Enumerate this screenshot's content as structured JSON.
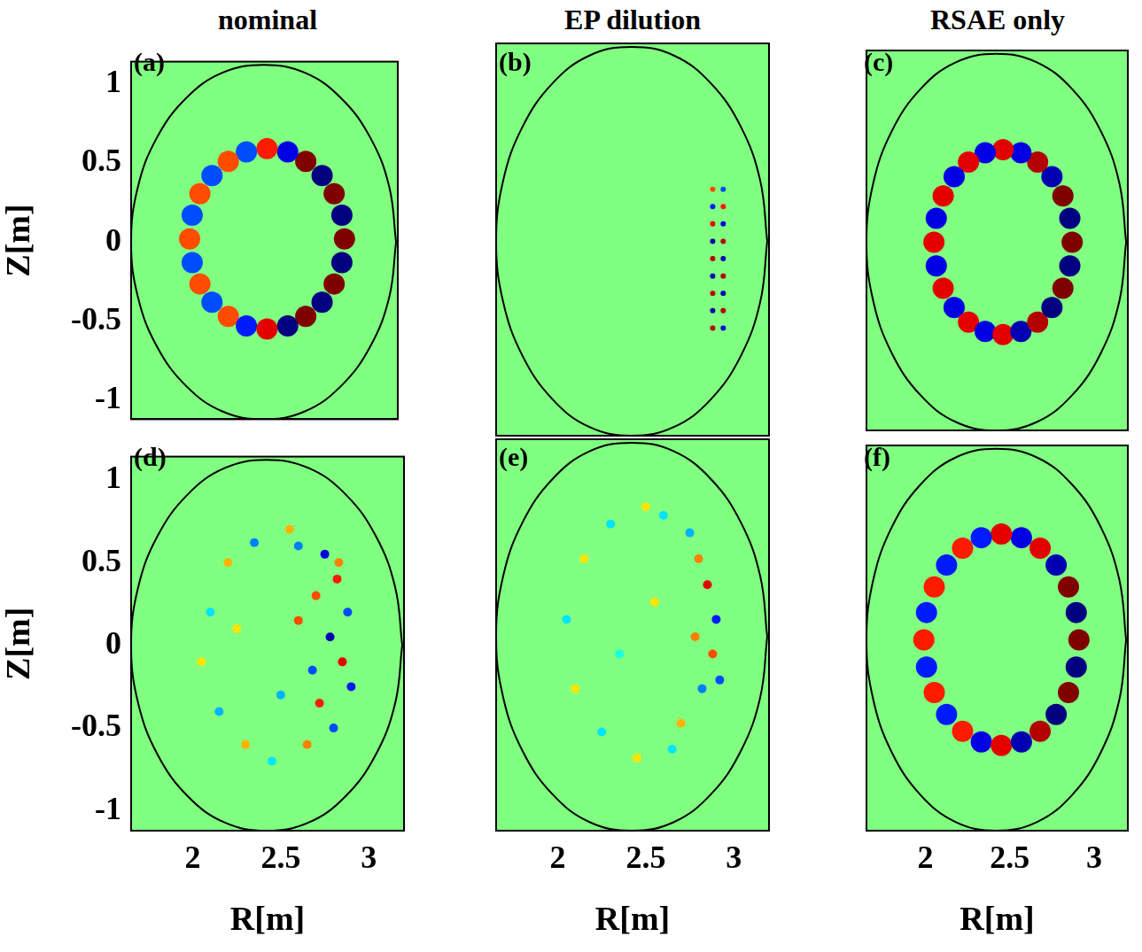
{
  "chart_data": [
    {
      "type": "scatter",
      "title": "nominal",
      "panel_label": "(a)",
      "y_label": "Z[m]",
      "tick_labels": "y",
      "xlim": [
        1.65,
        3.2
      ],
      "ylim": [
        -1.12,
        1.14
      ],
      "yticks": [
        -1,
        -0.5,
        0,
        0.5,
        1
      ],
      "color_range": [
        -1,
        1
      ],
      "boundary": {
        "R": [
          3.19,
          3.15,
          3.04,
          2.87,
          2.66,
          2.42,
          2.18,
          1.97,
          1.8,
          1.69,
          1.65,
          1.69,
          1.8,
          1.97,
          2.18,
          2.42,
          2.66,
          2.87,
          3.04,
          3.15,
          3.19
        ],
        "Z": [
          0,
          0.35,
          0.66,
          0.91,
          1.07,
          1.12,
          1.07,
          0.91,
          0.66,
          0.35,
          0,
          -0.35,
          -0.66,
          -0.91,
          -1.07,
          -1.12,
          -1.07,
          -0.91,
          -0.66,
          -0.35,
          0
        ]
      },
      "cells": {
        "R": [
          2.89,
          2.875,
          2.83,
          2.76,
          2.665,
          2.56,
          2.44,
          2.32,
          2.215,
          2.12,
          2.05,
          2.005,
          1.99,
          2.005,
          2.05,
          2.12,
          2.215,
          2.32,
          2.44,
          2.56,
          2.665,
          2.76,
          2.83,
          2.875
        ],
        "Z": [
          0.02,
          0.17,
          0.305,
          0.42,
          0.51,
          0.57,
          0.59,
          0.57,
          0.51,
          0.42,
          0.305,
          0.17,
          0.02,
          -0.13,
          -0.265,
          -0.38,
          -0.47,
          -0.53,
          -0.55,
          -0.53,
          -0.47,
          -0.38,
          -0.265,
          -0.13
        ],
        "values": [
          1,
          -1,
          1,
          -1,
          1,
          -0.8,
          0.7,
          -0.6,
          0.6,
          -0.6,
          0.6,
          -0.6,
          0.6,
          -0.6,
          0.6,
          -0.6,
          0.6,
          -0.7,
          0.8,
          -1,
          1,
          -1,
          1,
          -1
        ]
      }
    },
    {
      "type": "scatter",
      "title": "EP dilution",
      "panel_label": "(b)",
      "tick_labels": false,
      "xlim": [
        1.65,
        3.2
      ],
      "ylim": [
        -1.12,
        1.14
      ],
      "color_range": [
        -1,
        1
      ],
      "boundary": {
        "R": [
          3.19,
          3.15,
          3.04,
          2.87,
          2.66,
          2.42,
          2.18,
          1.97,
          1.8,
          1.69,
          1.65,
          1.69,
          1.8,
          1.97,
          2.18,
          2.42,
          2.66,
          2.87,
          3.04,
          3.15,
          3.19
        ],
        "Z": [
          0,
          0.35,
          0.66,
          0.91,
          1.07,
          1.12,
          1.07,
          0.91,
          0.66,
          0.35,
          0,
          -0.35,
          -0.66,
          -0.91,
          -1.07,
          -1.12,
          -1.07,
          -0.91,
          -0.66,
          -0.35,
          0
        ]
      },
      "cells": {
        "R": [
          2.88,
          2.88,
          2.88,
          2.88,
          2.88,
          2.88,
          2.88,
          2.88,
          2.88,
          2.94,
          2.94,
          2.94,
          2.94,
          2.94,
          2.94,
          2.94,
          2.94,
          2.94
        ],
        "Z": [
          -0.5,
          -0.4,
          -0.3,
          -0.2,
          -0.1,
          0,
          0.1,
          0.2,
          0.3,
          -0.5,
          -0.4,
          -0.3,
          -0.2,
          -0.1,
          0,
          0.1,
          0.2,
          0.3
        ],
        "values": [
          0.9,
          -0.9,
          0.9,
          -0.9,
          0.9,
          -0.9,
          0.8,
          -0.7,
          0.6,
          -0.8,
          0.9,
          -0.9,
          0.9,
          -0.9,
          0.9,
          -0.8,
          0.7,
          -0.6
        ]
      }
    },
    {
      "type": "scatter",
      "title": "RSAE only",
      "panel_label": "(c)",
      "tick_labels": false,
      "xlim": [
        1.65,
        3.2
      ],
      "ylim": [
        -1.12,
        1.14
      ],
      "color_range": [
        -1,
        1
      ],
      "boundary": {
        "R": [
          3.19,
          3.15,
          3.04,
          2.87,
          2.66,
          2.42,
          2.18,
          1.97,
          1.8,
          1.69,
          1.65,
          1.69,
          1.8,
          1.97,
          2.18,
          2.42,
          2.66,
          2.87,
          3.04,
          3.15,
          3.19
        ],
        "Z": [
          0,
          0.35,
          0.66,
          0.91,
          1.07,
          1.12,
          1.07,
          0.91,
          0.66,
          0.35,
          0,
          -0.35,
          -0.66,
          -0.91,
          -1.07,
          -1.12,
          -1.07,
          -0.91,
          -0.66,
          -0.35,
          0
        ]
      },
      "cells": {
        "R": [
          2.87,
          2.856,
          2.815,
          2.75,
          2.665,
          2.566,
          2.46,
          2.354,
          2.255,
          2.17,
          2.105,
          2.064,
          2.05,
          2.064,
          2.105,
          2.17,
          2.255,
          2.354,
          2.46,
          2.566,
          2.665,
          2.75,
          2.815,
          2.856
        ],
        "Z": [
          0,
          0.142,
          0.275,
          0.389,
          0.476,
          0.531,
          0.55,
          0.531,
          0.476,
          0.389,
          0.275,
          0.142,
          0,
          -0.142,
          -0.275,
          -0.389,
          -0.476,
          -0.531,
          -0.55,
          -0.531,
          -0.476,
          -0.389,
          -0.275,
          -0.142
        ],
        "values": [
          1,
          -1,
          1,
          -0.9,
          0.9,
          -0.8,
          0.8,
          -0.8,
          0.8,
          -0.8,
          0.8,
          -0.8,
          0.8,
          -0.8,
          0.8,
          -0.8,
          0.8,
          -0.8,
          0.8,
          -0.9,
          0.9,
          -1,
          1,
          -1
        ]
      }
    },
    {
      "type": "scatter",
      "panel_label": "(d)",
      "x_label": "R[m]",
      "y_label": "Z[m]",
      "tick_labels": true,
      "xlim": [
        1.65,
        3.2
      ],
      "ylim": [
        -1.12,
        1.14
      ],
      "xticks": [
        2,
        2.5,
        3
      ],
      "yticks": [
        -1,
        -0.5,
        0,
        0.5,
        1
      ],
      "color_range": [
        -1,
        1
      ],
      "boundary": {
        "R": [
          3.19,
          3.15,
          3.04,
          2.87,
          2.66,
          2.42,
          2.18,
          1.97,
          1.8,
          1.69,
          1.65,
          1.69,
          1.8,
          1.97,
          2.18,
          2.42,
          2.66,
          2.87,
          3.04,
          3.15,
          3.19
        ],
        "Z": [
          0,
          0.35,
          0.66,
          0.91,
          1.07,
          1.12,
          1.07,
          0.91,
          0.66,
          0.35,
          0,
          -0.35,
          -0.66,
          -0.91,
          -1.07,
          -1.12,
          -1.07,
          -0.91,
          -0.66,
          -0.35,
          0
        ]
      },
      "cells": {
        "R": [
          2.75,
          2.82,
          2.88,
          2.7,
          2.78,
          2.85,
          2.9,
          2.72,
          2.8,
          2.65,
          2.6,
          2.55,
          2.35,
          2.2,
          2.1,
          2.05,
          2.15,
          2.3,
          2.45,
          2.6,
          2.68,
          2.83,
          2.5,
          2.25
        ],
        "Z": [
          0.55,
          0.4,
          0.2,
          0.3,
          0.05,
          -0.1,
          -0.25,
          -0.35,
          -0.5,
          -0.6,
          0.6,
          0.7,
          0.62,
          0.5,
          0.2,
          -0.1,
          -0.4,
          -0.6,
          -0.7,
          0.15,
          -0.15,
          0.5,
          -0.3,
          0.1
        ],
        "values": [
          -0.8,
          0.7,
          -0.6,
          0.6,
          -0.9,
          0.8,
          -0.7,
          0.7,
          -0.6,
          0.5,
          -0.5,
          0.4,
          -0.5,
          0.4,
          -0.3,
          0.3,
          -0.4,
          0.4,
          -0.3,
          0.6,
          -0.6,
          0.5,
          -0.4,
          0.3
        ]
      }
    },
    {
      "type": "scatter",
      "panel_label": "(e)",
      "x_label": "R[m]",
      "tick_labels": "x",
      "xlim": [
        1.65,
        3.2
      ],
      "ylim": [
        -1.12,
        1.14
      ],
      "xticks": [
        2,
        2.5,
        3
      ],
      "color_range": [
        -1,
        1
      ],
      "boundary": {
        "R": [
          3.19,
          3.15,
          3.04,
          2.87,
          2.66,
          2.42,
          2.18,
          1.97,
          1.8,
          1.69,
          1.65,
          1.69,
          1.8,
          1.97,
          2.18,
          2.42,
          2.66,
          2.87,
          3.04,
          3.15,
          3.19
        ],
        "Z": [
          0,
          0.35,
          0.66,
          0.91,
          1.07,
          1.12,
          1.07,
          0.91,
          0.66,
          0.35,
          0,
          -0.35,
          -0.66,
          -0.91,
          -1.07,
          -1.12,
          -1.07,
          -0.91,
          -0.66,
          -0.35,
          0
        ]
      },
      "cells": {
        "R": [
          2.85,
          2.9,
          2.8,
          2.88,
          2.75,
          2.82,
          2.7,
          2.6,
          2.5,
          2.3,
          2.15,
          2.05,
          2.1,
          2.25,
          2.45,
          2.65,
          2.78,
          2.92,
          2.55,
          2.35
        ],
        "Z": [
          0.3,
          0.1,
          0.45,
          -0.1,
          0.6,
          -0.3,
          -0.5,
          0.7,
          0.75,
          0.65,
          0.45,
          0.1,
          -0.3,
          -0.55,
          -0.7,
          -0.65,
          0,
          -0.25,
          0.2,
          -0.1
        ],
        "values": [
          0.8,
          -0.7,
          0.5,
          0.6,
          -0.4,
          -0.5,
          0.4,
          -0.3,
          0.3,
          -0.3,
          0.3,
          -0.3,
          0.3,
          -0.3,
          0.3,
          -0.3,
          0.5,
          -0.6,
          0.3,
          -0.2
        ]
      }
    },
    {
      "type": "scatter",
      "panel_label": "(f)",
      "x_label": "R[m]",
      "tick_labels": "x",
      "xlim": [
        1.65,
        3.2
      ],
      "ylim": [
        -1.12,
        1.14
      ],
      "xticks": [
        2,
        2.5,
        3
      ],
      "color_range": [
        -1,
        1
      ],
      "boundary": {
        "R": [
          3.19,
          3.15,
          3.04,
          2.87,
          2.66,
          2.42,
          2.18,
          1.97,
          1.8,
          1.69,
          1.65,
          1.69,
          1.8,
          1.97,
          2.18,
          2.42,
          2.66,
          2.87,
          3.04,
          3.15,
          3.19
        ],
        "Z": [
          0,
          0.35,
          0.66,
          0.91,
          1.07,
          1.12,
          1.07,
          0.91,
          0.66,
          0.35,
          0,
          -0.35,
          -0.66,
          -0.91,
          -1.07,
          -1.12,
          -1.07,
          -0.91,
          -0.66,
          -0.35,
          0
        ]
      },
      "cells": {
        "R": [
          2.91,
          2.894,
          2.848,
          2.775,
          2.68,
          2.569,
          2.45,
          2.331,
          2.22,
          2.125,
          2.052,
          2.006,
          1.99,
          2.006,
          2.052,
          2.125,
          2.22,
          2.331,
          2.45,
          2.569,
          2.68,
          2.775,
          2.848,
          2.894
        ],
        "Z": [
          0,
          0.16,
          0.31,
          0.438,
          0.537,
          0.599,
          0.62,
          0.599,
          0.537,
          0.438,
          0.31,
          0.16,
          0,
          -0.16,
          -0.31,
          -0.438,
          -0.537,
          -0.599,
          -0.62,
          -0.599,
          -0.537,
          -0.438,
          -0.31,
          -0.16
        ],
        "values": [
          1,
          -1,
          1,
          -0.9,
          0.8,
          -0.8,
          0.8,
          -0.7,
          0.7,
          -0.7,
          0.7,
          -0.7,
          0.7,
          -0.7,
          0.7,
          -0.7,
          0.7,
          -0.8,
          0.8,
          -0.9,
          0.9,
          -1,
          1,
          -1
        ]
      }
    }
  ]
}
